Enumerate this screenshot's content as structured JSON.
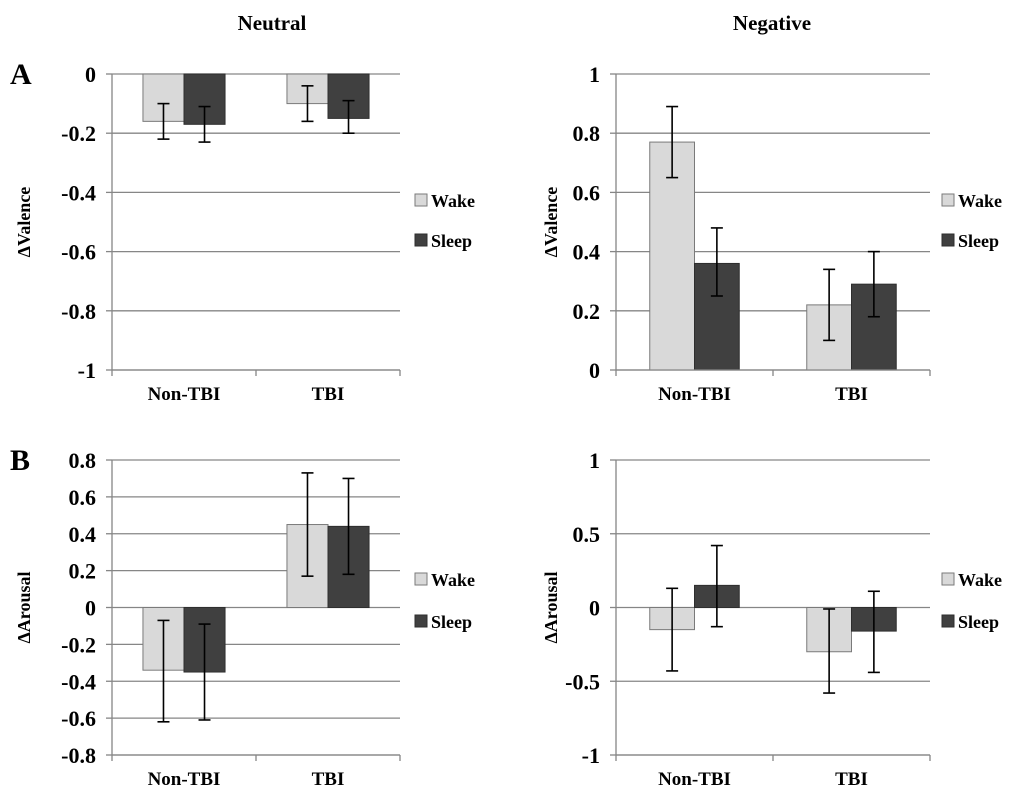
{
  "column_titles": [
    "Neutral",
    "Negative"
  ],
  "row_labels": [
    "A",
    "B"
  ],
  "colors": {
    "wake": "#d9d9d9",
    "sleep": "#404040",
    "axis": "#868686",
    "text": "#000000"
  },
  "chart_data": [
    {
      "type": "bar",
      "panel": "A-neutral",
      "title": "",
      "xlabel": "",
      "ylabel": "ΔValence",
      "categories": [
        "Non-TBI",
        "TBI"
      ],
      "ylim": [
        -1,
        0
      ],
      "yticks": [
        0,
        -0.2,
        -0.4,
        -0.6,
        -0.8,
        -1
      ],
      "ytick_labels": [
        "0",
        "-0.2",
        "-0.4",
        "-0.6",
        "-0.8",
        "-1"
      ],
      "grid": true,
      "legend": "right",
      "series": [
        {
          "name": "Wake",
          "values": [
            -0.16,
            -0.1
          ],
          "err_low": [
            -0.22,
            -0.16
          ],
          "err_high": [
            -0.1,
            -0.04
          ]
        },
        {
          "name": "Sleep",
          "values": [
            -0.17,
            -0.15
          ],
          "err_low": [
            -0.23,
            -0.2
          ],
          "err_high": [
            -0.11,
            -0.09
          ]
        }
      ]
    },
    {
      "type": "bar",
      "panel": "A-negative",
      "title": "",
      "xlabel": "",
      "ylabel": "ΔValence",
      "categories": [
        "Non-TBI",
        "TBI"
      ],
      "ylim": [
        0,
        1
      ],
      "yticks": [
        1,
        0.8,
        0.6,
        0.4,
        0.2,
        0
      ],
      "ytick_labels": [
        "1",
        "0.8",
        "0.6",
        "0.4",
        "0.2",
        "0"
      ],
      "grid": true,
      "legend": "right",
      "series": [
        {
          "name": "Wake",
          "values": [
            0.77,
            0.22
          ],
          "err_low": [
            0.65,
            0.1
          ],
          "err_high": [
            0.89,
            0.34
          ]
        },
        {
          "name": "Sleep",
          "values": [
            0.36,
            0.29
          ],
          "err_low": [
            0.25,
            0.18
          ],
          "err_high": [
            0.48,
            0.4
          ]
        }
      ]
    },
    {
      "type": "bar",
      "panel": "B-neutral",
      "title": "",
      "xlabel": "",
      "ylabel": "ΔArousal",
      "categories": [
        "Non-TBI",
        "TBI"
      ],
      "ylim": [
        -0.8,
        0.8
      ],
      "yticks": [
        0.8,
        0.6,
        0.4,
        0.2,
        0,
        -0.2,
        -0.4,
        -0.6,
        -0.8
      ],
      "ytick_labels": [
        "0.8",
        "0.6",
        "0.4",
        "0.2",
        "0",
        "-0.2",
        "-0.4",
        "-0.6",
        "-0.8"
      ],
      "grid": true,
      "legend": "right",
      "series": [
        {
          "name": "Wake",
          "values": [
            -0.34,
            0.45
          ],
          "err_low": [
            -0.62,
            0.17
          ],
          "err_high": [
            -0.07,
            0.73
          ]
        },
        {
          "name": "Sleep",
          "values": [
            -0.35,
            0.44
          ],
          "err_low": [
            -0.61,
            0.18
          ],
          "err_high": [
            -0.09,
            0.7
          ]
        }
      ]
    },
    {
      "type": "bar",
      "panel": "B-negative",
      "title": "",
      "xlabel": "",
      "ylabel": "ΔArousal",
      "categories": [
        "Non-TBI",
        "TBI"
      ],
      "ylim": [
        -1,
        1
      ],
      "yticks": [
        1,
        0.5,
        0,
        -0.5,
        -1
      ],
      "ytick_labels": [
        "1",
        "0.5",
        "0",
        "-0.5",
        "-1"
      ],
      "grid": true,
      "legend": "right",
      "series": [
        {
          "name": "Wake",
          "values": [
            -0.15,
            -0.3
          ],
          "err_low": [
            -0.43,
            -0.58
          ],
          "err_high": [
            0.13,
            -0.01
          ]
        },
        {
          "name": "Sleep",
          "values": [
            0.15,
            -0.16
          ],
          "err_low": [
            -0.13,
            -0.44
          ],
          "err_high": [
            0.42,
            0.11
          ]
        }
      ]
    }
  ]
}
